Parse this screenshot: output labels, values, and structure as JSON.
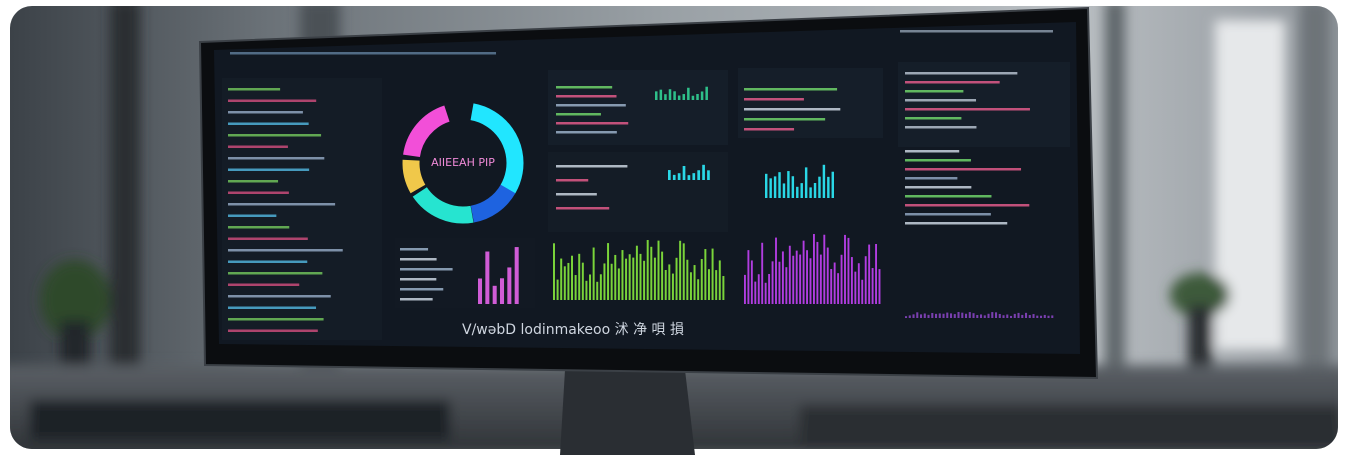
{
  "screen": {
    "donut_label": "AIIEEAH PIP",
    "caption": "V/wəbD lodinmakeoo 沭 净 唄 損"
  }
}
